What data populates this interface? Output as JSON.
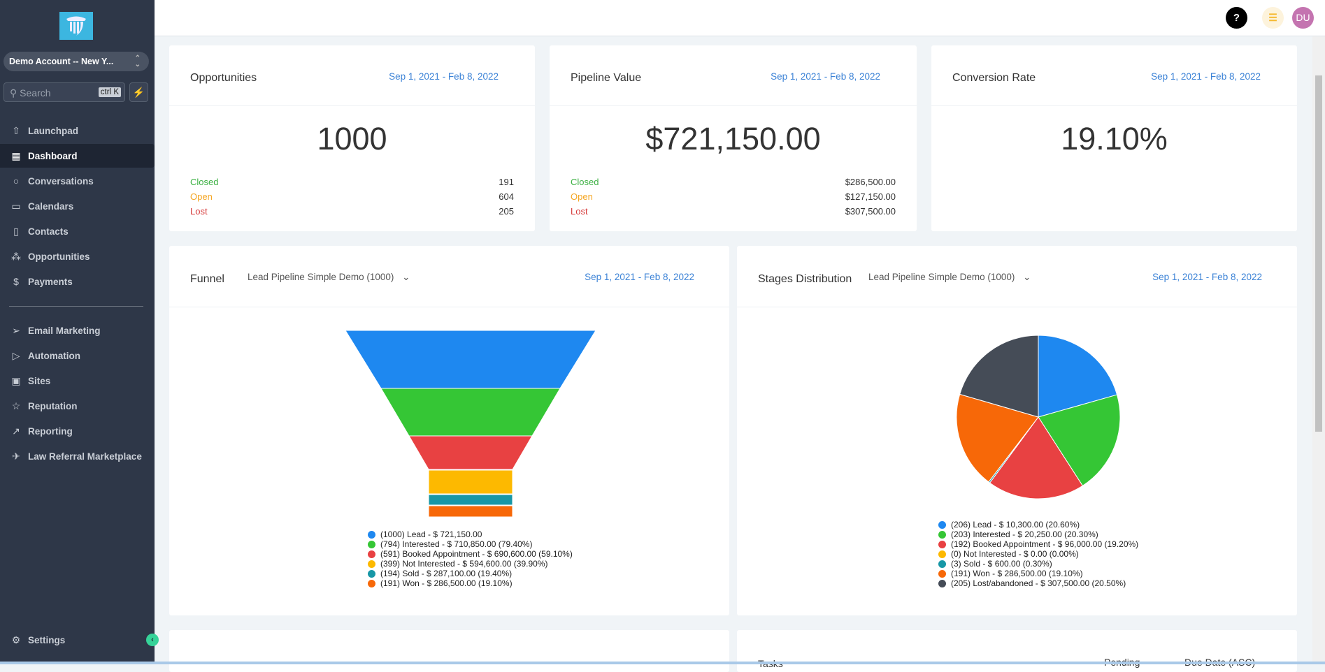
{
  "sidebar": {
    "account": "Demo Account -- New Y...",
    "search_placeholder": "Search",
    "search_shortcut": "ctrl K",
    "items": [
      {
        "label": "Launchpad",
        "icon": "rocket-icon"
      },
      {
        "label": "Dashboard",
        "icon": "dashboard-icon"
      },
      {
        "label": "Conversations",
        "icon": "chat-icon"
      },
      {
        "label": "Calendars",
        "icon": "calendar-icon"
      },
      {
        "label": "Contacts",
        "icon": "contacts-icon"
      },
      {
        "label": "Opportunities",
        "icon": "opportunities-icon"
      },
      {
        "label": "Payments",
        "icon": "payments-icon"
      }
    ],
    "items2": [
      {
        "label": "Email Marketing",
        "icon": "send-icon"
      },
      {
        "label": "Automation",
        "icon": "automation-icon"
      },
      {
        "label": "Sites",
        "icon": "sites-icon"
      },
      {
        "label": "Reputation",
        "icon": "star-icon"
      },
      {
        "label": "Reporting",
        "icon": "trend-icon"
      },
      {
        "label": "Law Referral Marketplace",
        "icon": "plane-icon"
      }
    ],
    "settings": "Settings"
  },
  "topbar": {
    "help": "?",
    "avatar": "DU"
  },
  "stats": [
    {
      "title": "Opportunities",
      "date": "Sep 1, 2021 - Feb 8, 2022",
      "value": "1000",
      "rows": [
        {
          "label": "Closed",
          "value": "191"
        },
        {
          "label": "Open",
          "value": "604"
        },
        {
          "label": "Lost",
          "value": "205"
        }
      ]
    },
    {
      "title": "Pipeline Value",
      "date": "Sep 1, 2021 - Feb 8, 2022",
      "value": "$721,150.00",
      "rows": [
        {
          "label": "Closed",
          "value": "$286,500.00"
        },
        {
          "label": "Open",
          "value": "$127,150.00"
        },
        {
          "label": "Lost",
          "value": "$307,500.00"
        }
      ]
    },
    {
      "title": "Conversion Rate",
      "date": "Sep 1, 2021 - Feb 8, 2022",
      "value": "19.10%"
    }
  ],
  "funnel": {
    "title": "Funnel",
    "pipeline": "Lead Pipeline Simple Demo (1000)",
    "date": "Sep 1, 2021 - Feb 8, 2022",
    "legend": [
      "(1000) Lead - $ 721,150.00",
      "(794) Interested - $ 710,850.00 (79.40%)",
      "(591) Booked Appointment - $ 690,600.00 (59.10%)",
      "(399) Not Interested - $ 594,600.00 (39.90%)",
      "(194) Sold - $ 287,100.00 (19.40%)",
      "(191) Won - $ 286,500.00 (19.10%)"
    ]
  },
  "stages": {
    "title": "Stages Distribution",
    "pipeline": "Lead Pipeline Simple Demo (1000)",
    "date": "Sep 1, 2021 - Feb 8, 2022",
    "legend": [
      "(206) Lead - $ 10,300.00 (20.60%)",
      "(203) Interested - $ 20,250.00 (20.30%)",
      "(192) Booked Appointment - $ 96,000.00 (19.20%)",
      "(0) Not Interested - $ 0.00 (0.00%)",
      "(3) Sold - $ 600.00 (0.30%)",
      "(191) Won - $ 286,500.00 (19.10%)",
      "(205) Lost/abandoned - $ 307,500.00 (20.50%)"
    ]
  },
  "tasks": {
    "title": "Tasks",
    "status": "Pending",
    "sort": "Due Date (ASC)"
  },
  "colors": {
    "stage": [
      "#1e88f0",
      "#35c635",
      "#e84142",
      "#fdb900",
      "#1797a6",
      "#f76808",
      "#454c57"
    ],
    "closed": "#3cb043",
    "open": "#f5a623",
    "lost": "#d63b3b",
    "date": "#3b82d6"
  },
  "chart_data": [
    {
      "type": "funnel",
      "title": "Funnel",
      "categories": [
        "Lead",
        "Interested",
        "Booked Appointment",
        "Not Interested",
        "Sold",
        "Won"
      ],
      "counts": [
        1000,
        794,
        591,
        399,
        194,
        191
      ],
      "values": [
        721150,
        710850,
        690600,
        594600,
        287100,
        286500
      ],
      "percent": [
        100,
        79.4,
        59.1,
        39.9,
        19.4,
        19.1
      ]
    },
    {
      "type": "pie",
      "title": "Stages Distribution",
      "categories": [
        "Lead",
        "Interested",
        "Booked Appointment",
        "Not Interested",
        "Sold",
        "Won",
        "Lost/abandoned"
      ],
      "counts": [
        206,
        203,
        192,
        0,
        3,
        191,
        205
      ],
      "values": [
        10300,
        20250,
        96000,
        0,
        600,
        286500,
        307500
      ],
      "percent": [
        20.6,
        20.3,
        19.2,
        0,
        0.3,
        19.1,
        20.5
      ]
    }
  ]
}
